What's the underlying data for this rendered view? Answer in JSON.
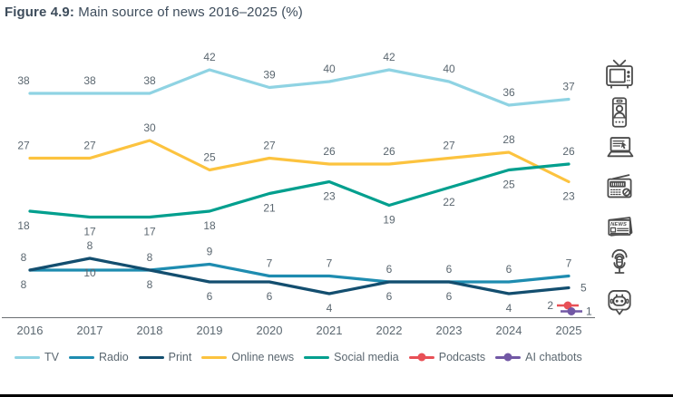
{
  "title": {
    "prefix": "Figure 4.9:",
    "text": " Main source of news 2016–2025 (%)"
  },
  "colors": {
    "title": "#3e4d5c",
    "label": "#5b6770",
    "axis": "#6b6f72",
    "icon": "#4c4c4c",
    "background": "#ffffff",
    "bottom_border": "#000000"
  },
  "chart_data": {
    "type": "line",
    "title": "Main source of news 2016–2025 (%)",
    "x": [
      "2016",
      "2017",
      "2018",
      "2019",
      "2020",
      "2021",
      "2022",
      "2023",
      "2024",
      "2025"
    ],
    "ylim": [
      0,
      47
    ],
    "grid": false,
    "legend_position": "bottom",
    "legend_order": [
      0,
      3,
      4,
      1,
      2,
      5,
      6
    ],
    "series": [
      {
        "name": "TV",
        "color": "#8fd3e3",
        "values": [
          38,
          38,
          38,
          42,
          39,
          40,
          42,
          40,
          36,
          37
        ],
        "label_sides": [
          "above",
          "above",
          "above",
          "above",
          "above",
          "above",
          "above",
          "above",
          "above",
          "above"
        ]
      },
      {
        "name": "Online news",
        "color": "#fcc33f",
        "values": [
          27,
          27,
          30,
          25,
          27,
          26,
          26,
          27,
          28,
          23
        ],
        "label_sides": [
          "above",
          "above",
          "above",
          "above",
          "above",
          "above",
          "above",
          "above",
          "above",
          "below"
        ]
      },
      {
        "name": "Social media",
        "color": "#019f8e",
        "values": [
          18,
          17,
          17,
          18,
          21,
          23,
          19,
          22,
          25,
          26
        ],
        "label_sides": [
          "below",
          "below",
          "below",
          "below",
          "below",
          "below",
          "below",
          "below",
          "below",
          "above"
        ]
      },
      {
        "name": "Radio",
        "color": "#1e8cb0",
        "values": [
          8,
          8,
          8,
          9,
          7,
          7,
          6,
          6,
          6,
          7
        ],
        "label_sides": [
          "above",
          "above",
          "above",
          "above",
          "above",
          "above",
          "above",
          "above",
          "above",
          "above"
        ],
        "label_dy": {
          "1": -13
        }
      },
      {
        "name": "Print",
        "color": "#134e6f",
        "values": [
          8,
          10,
          8,
          6,
          6,
          4,
          6,
          6,
          4,
          5
        ],
        "label_sides": [
          "below",
          "below",
          "below",
          "below",
          "below",
          "below",
          "below",
          "below",
          "below",
          "right"
        ]
      },
      {
        "name": "Podcasts",
        "color": "#e85056",
        "marker": true,
        "dx": -1,
        "values": [
          null,
          null,
          null,
          null,
          null,
          null,
          null,
          null,
          null,
          2
        ],
        "label_sides": [
          null,
          null,
          null,
          null,
          null,
          null,
          null,
          null,
          null,
          "left"
        ]
      },
      {
        "name": "AI chatbots",
        "color": "#7258a5",
        "marker": true,
        "dx": 3,
        "values": [
          null,
          null,
          null,
          null,
          null,
          null,
          null,
          null,
          null,
          1
        ],
        "label_sides": [
          null,
          null,
          null,
          null,
          null,
          null,
          null,
          null,
          null,
          "right"
        ]
      }
    ]
  },
  "icons": [
    {
      "name": "tv-icon",
      "text": ""
    },
    {
      "name": "smartphone-profile-icon",
      "text": ""
    },
    {
      "name": "laptop-news-icon",
      "text": ""
    },
    {
      "name": "radio-icon",
      "text": ""
    },
    {
      "name": "newspaper-icon",
      "text": "NEWS"
    },
    {
      "name": "podcast-microphone-icon",
      "text": ""
    },
    {
      "name": "ai-chatbot-icon",
      "text": ""
    }
  ]
}
